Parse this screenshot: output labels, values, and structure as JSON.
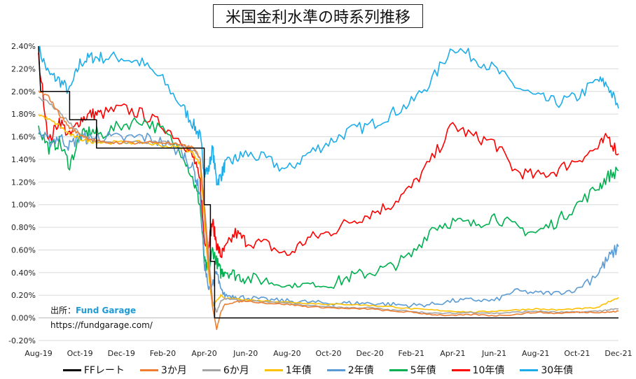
{
  "chart_data": {
    "type": "line",
    "title": "米国金利水準の時系列推移",
    "source": {
      "prefix": "出所：",
      "name": "Fund Garage",
      "url": "https://fundgarage.com/"
    },
    "x_ticks": [
      "Aug-19",
      "Oct-19",
      "Dec-19",
      "Feb-20",
      "Apr-20",
      "Jun-20",
      "Aug-20",
      "Oct-20",
      "Dec-20",
      "Feb-21",
      "Apr-21",
      "Jun-21",
      "Aug-21",
      "Oct-21",
      "Dec-21"
    ],
    "y_ticks": [
      "2.40%",
      "2.20%",
      "2.00%",
      "1.80%",
      "1.60%",
      "1.40%",
      "1.20%",
      "1.00%",
      "0.80%",
      "0.60%",
      "0.40%",
      "0.20%",
      "0.00%",
      "-0.20%"
    ],
    "ylim": [
      -0.2,
      2.4
    ],
    "x_index_range": [
      0,
      28
    ],
    "grid": true,
    "legend_position": "bottom",
    "series": [
      {
        "name": "FFレート",
        "color": "#000000",
        "step": true,
        "x": [
          0,
          0.1,
          1.5,
          1.5,
          2.8,
          2.8,
          8.0,
          8.0,
          8.3,
          8.3,
          8.5,
          8.5,
          28
        ],
        "y": [
          2.4,
          2.0,
          2.0,
          1.75,
          1.75,
          1.5,
          1.5,
          1.0,
          1.0,
          0.5,
          0.5,
          0.0,
          0.0
        ]
      },
      {
        "name": "3か月",
        "color": "#ed7d31",
        "x": [
          0,
          0.5,
          1.0,
          1.5,
          2.0,
          2.5,
          3.0,
          4.0,
          5.0,
          6.0,
          7.0,
          7.5,
          7.8,
          8.0,
          8.2,
          8.4,
          8.6,
          8.8,
          9.0,
          9.5,
          10,
          11,
          12,
          13,
          14,
          15,
          16,
          17,
          18,
          19,
          20,
          21,
          22,
          23,
          24,
          25,
          26,
          27,
          27.5,
          28
        ],
        "y": [
          2.0,
          1.95,
          1.8,
          1.68,
          1.62,
          1.58,
          1.55,
          1.55,
          1.55,
          1.55,
          1.52,
          1.5,
          1.4,
          1.0,
          0.5,
          0.1,
          -0.1,
          0.05,
          0.12,
          0.14,
          0.15,
          0.13,
          0.12,
          0.1,
          0.09,
          0.08,
          0.08,
          0.06,
          0.05,
          0.03,
          0.02,
          0.03,
          0.02,
          0.03,
          0.05,
          0.04,
          0.05,
          0.05,
          0.05,
          0.06
        ]
      },
      {
        "name": "6か月",
        "color": "#a5a5a5",
        "x": [
          0,
          0.5,
          1.0,
          1.5,
          2.0,
          2.5,
          3.0,
          4.0,
          5.0,
          6.0,
          7.0,
          7.5,
          7.8,
          8.0,
          8.2,
          8.4,
          8.6,
          8.8,
          9.0,
          9.5,
          10,
          11,
          12,
          13,
          14,
          15,
          16,
          17,
          18,
          19,
          20,
          21,
          22,
          23,
          24,
          25,
          26,
          27,
          27.5,
          28
        ],
        "y": [
          1.95,
          1.9,
          1.82,
          1.72,
          1.62,
          1.58,
          1.55,
          1.55,
          1.55,
          1.55,
          1.52,
          1.48,
          1.4,
          1.0,
          0.6,
          0.15,
          0.05,
          0.15,
          0.17,
          0.16,
          0.15,
          0.14,
          0.13,
          0.11,
          0.1,
          0.09,
          0.09,
          0.07,
          0.06,
          0.04,
          0.04,
          0.05,
          0.04,
          0.05,
          0.06,
          0.05,
          0.05,
          0.06,
          0.07,
          0.08
        ]
      },
      {
        "name": "1年債",
        "color": "#ffc000",
        "x": [
          0,
          0.5,
          1.0,
          1.5,
          2.0,
          2.5,
          3.0,
          4.0,
          5.0,
          6.0,
          7.0,
          7.5,
          7.8,
          8.0,
          8.2,
          8.4,
          8.6,
          8.8,
          9.0,
          9.5,
          10,
          11,
          12,
          13,
          14,
          15,
          16,
          17,
          18,
          19,
          20,
          21,
          22,
          23,
          24,
          25,
          26,
          27,
          27.5,
          28
        ],
        "y": [
          1.8,
          1.75,
          1.7,
          1.62,
          1.58,
          1.56,
          1.55,
          1.55,
          1.55,
          1.52,
          1.5,
          1.45,
          1.35,
          0.9,
          0.4,
          0.1,
          0.15,
          0.2,
          0.17,
          0.17,
          0.16,
          0.15,
          0.14,
          0.13,
          0.12,
          0.12,
          0.11,
          0.1,
          0.08,
          0.07,
          0.06,
          0.05,
          0.06,
          0.07,
          0.08,
          0.07,
          0.08,
          0.09,
          0.14,
          0.18
        ]
      },
      {
        "name": "2年債",
        "color": "#5b9bd5",
        "x": [
          0,
          0.5,
          1.0,
          1.5,
          2.0,
          2.5,
          3.0,
          4.0,
          5.0,
          6.0,
          7.0,
          7.5,
          7.8,
          8.0,
          8.2,
          8.4,
          8.6,
          8.8,
          9.0,
          9.5,
          10,
          11,
          12,
          13,
          14,
          15,
          16,
          17,
          18,
          19,
          20,
          21,
          22,
          23,
          24,
          25,
          26,
          27,
          27.5,
          28
        ],
        "y": [
          1.65,
          1.55,
          1.6,
          1.52,
          1.6,
          1.58,
          1.6,
          1.58,
          1.6,
          1.55,
          1.45,
          1.3,
          1.1,
          0.5,
          0.25,
          0.3,
          0.4,
          0.25,
          0.2,
          0.19,
          0.18,
          0.16,
          0.15,
          0.14,
          0.13,
          0.13,
          0.13,
          0.12,
          0.11,
          0.12,
          0.15,
          0.16,
          0.15,
          0.24,
          0.22,
          0.22,
          0.25,
          0.4,
          0.52,
          0.63
        ]
      },
      {
        "name": "5年債",
        "color": "#00b050",
        "x": [
          0,
          0.5,
          1.0,
          1.5,
          2.0,
          2.5,
          3.0,
          4.0,
          5.0,
          6.0,
          7.0,
          7.5,
          7.8,
          8.0,
          8.2,
          8.4,
          8.6,
          8.8,
          9.0,
          9.5,
          10,
          11,
          12,
          13,
          14,
          15,
          16,
          17,
          18,
          19,
          20,
          21,
          22,
          23,
          24,
          25,
          26,
          27,
          27.5,
          28
        ],
        "y": [
          1.68,
          1.5,
          1.55,
          1.35,
          1.6,
          1.65,
          1.62,
          1.7,
          1.75,
          1.65,
          1.45,
          1.2,
          1.0,
          0.5,
          0.4,
          0.6,
          0.5,
          0.4,
          0.42,
          0.38,
          0.35,
          0.33,
          0.28,
          0.3,
          0.28,
          0.36,
          0.4,
          0.45,
          0.55,
          0.8,
          0.85,
          0.82,
          0.9,
          0.8,
          0.75,
          0.85,
          1.0,
          1.15,
          1.25,
          1.3
        ]
      },
      {
        "name": "10年債",
        "color": "#ff0000",
        "x": [
          0,
          0.5,
          1.0,
          1.5,
          2.0,
          2.5,
          3.0,
          4.0,
          5.0,
          6.0,
          7.0,
          7.5,
          7.8,
          8.0,
          8.2,
          8.4,
          8.6,
          8.8,
          9.0,
          9.5,
          10,
          11,
          12,
          13,
          14,
          15,
          16,
          17,
          18,
          19,
          20,
          21,
          22,
          23,
          24,
          25,
          26,
          27,
          27.5,
          28
        ],
        "y": [
          2.3,
          1.55,
          1.75,
          1.6,
          1.75,
          1.8,
          1.8,
          1.85,
          1.8,
          1.7,
          1.55,
          1.4,
          1.2,
          0.7,
          0.65,
          0.85,
          0.65,
          0.55,
          0.6,
          0.75,
          0.68,
          0.65,
          0.55,
          0.7,
          0.75,
          0.85,
          0.92,
          1.0,
          1.15,
          1.4,
          1.7,
          1.6,
          1.55,
          1.3,
          1.25,
          1.3,
          1.4,
          1.5,
          1.6,
          1.45
        ]
      },
      {
        "name": "30年債",
        "color": "#1cadea",
        "x": [
          0,
          0.5,
          1.0,
          1.5,
          2.0,
          2.5,
          3.0,
          4.0,
          5.0,
          6.0,
          7.0,
          7.5,
          7.8,
          8.0,
          8.2,
          8.4,
          8.6,
          8.8,
          9.0,
          9.5,
          10,
          11,
          12,
          13,
          14,
          15,
          16,
          17,
          18,
          19,
          20,
          21,
          22,
          23,
          24,
          25,
          26,
          27,
          27.5,
          28
        ],
        "y": [
          2.38,
          2.15,
          2.1,
          2.0,
          2.25,
          2.3,
          2.3,
          2.3,
          2.25,
          2.1,
          1.85,
          1.7,
          1.6,
          1.3,
          1.3,
          1.5,
          1.2,
          1.25,
          1.35,
          1.4,
          1.45,
          1.4,
          1.3,
          1.45,
          1.55,
          1.65,
          1.7,
          1.8,
          1.9,
          2.1,
          2.4,
          2.3,
          2.2,
          2.05,
          1.95,
          1.9,
          1.95,
          2.1,
          2.05,
          1.85
        ]
      }
    ]
  }
}
